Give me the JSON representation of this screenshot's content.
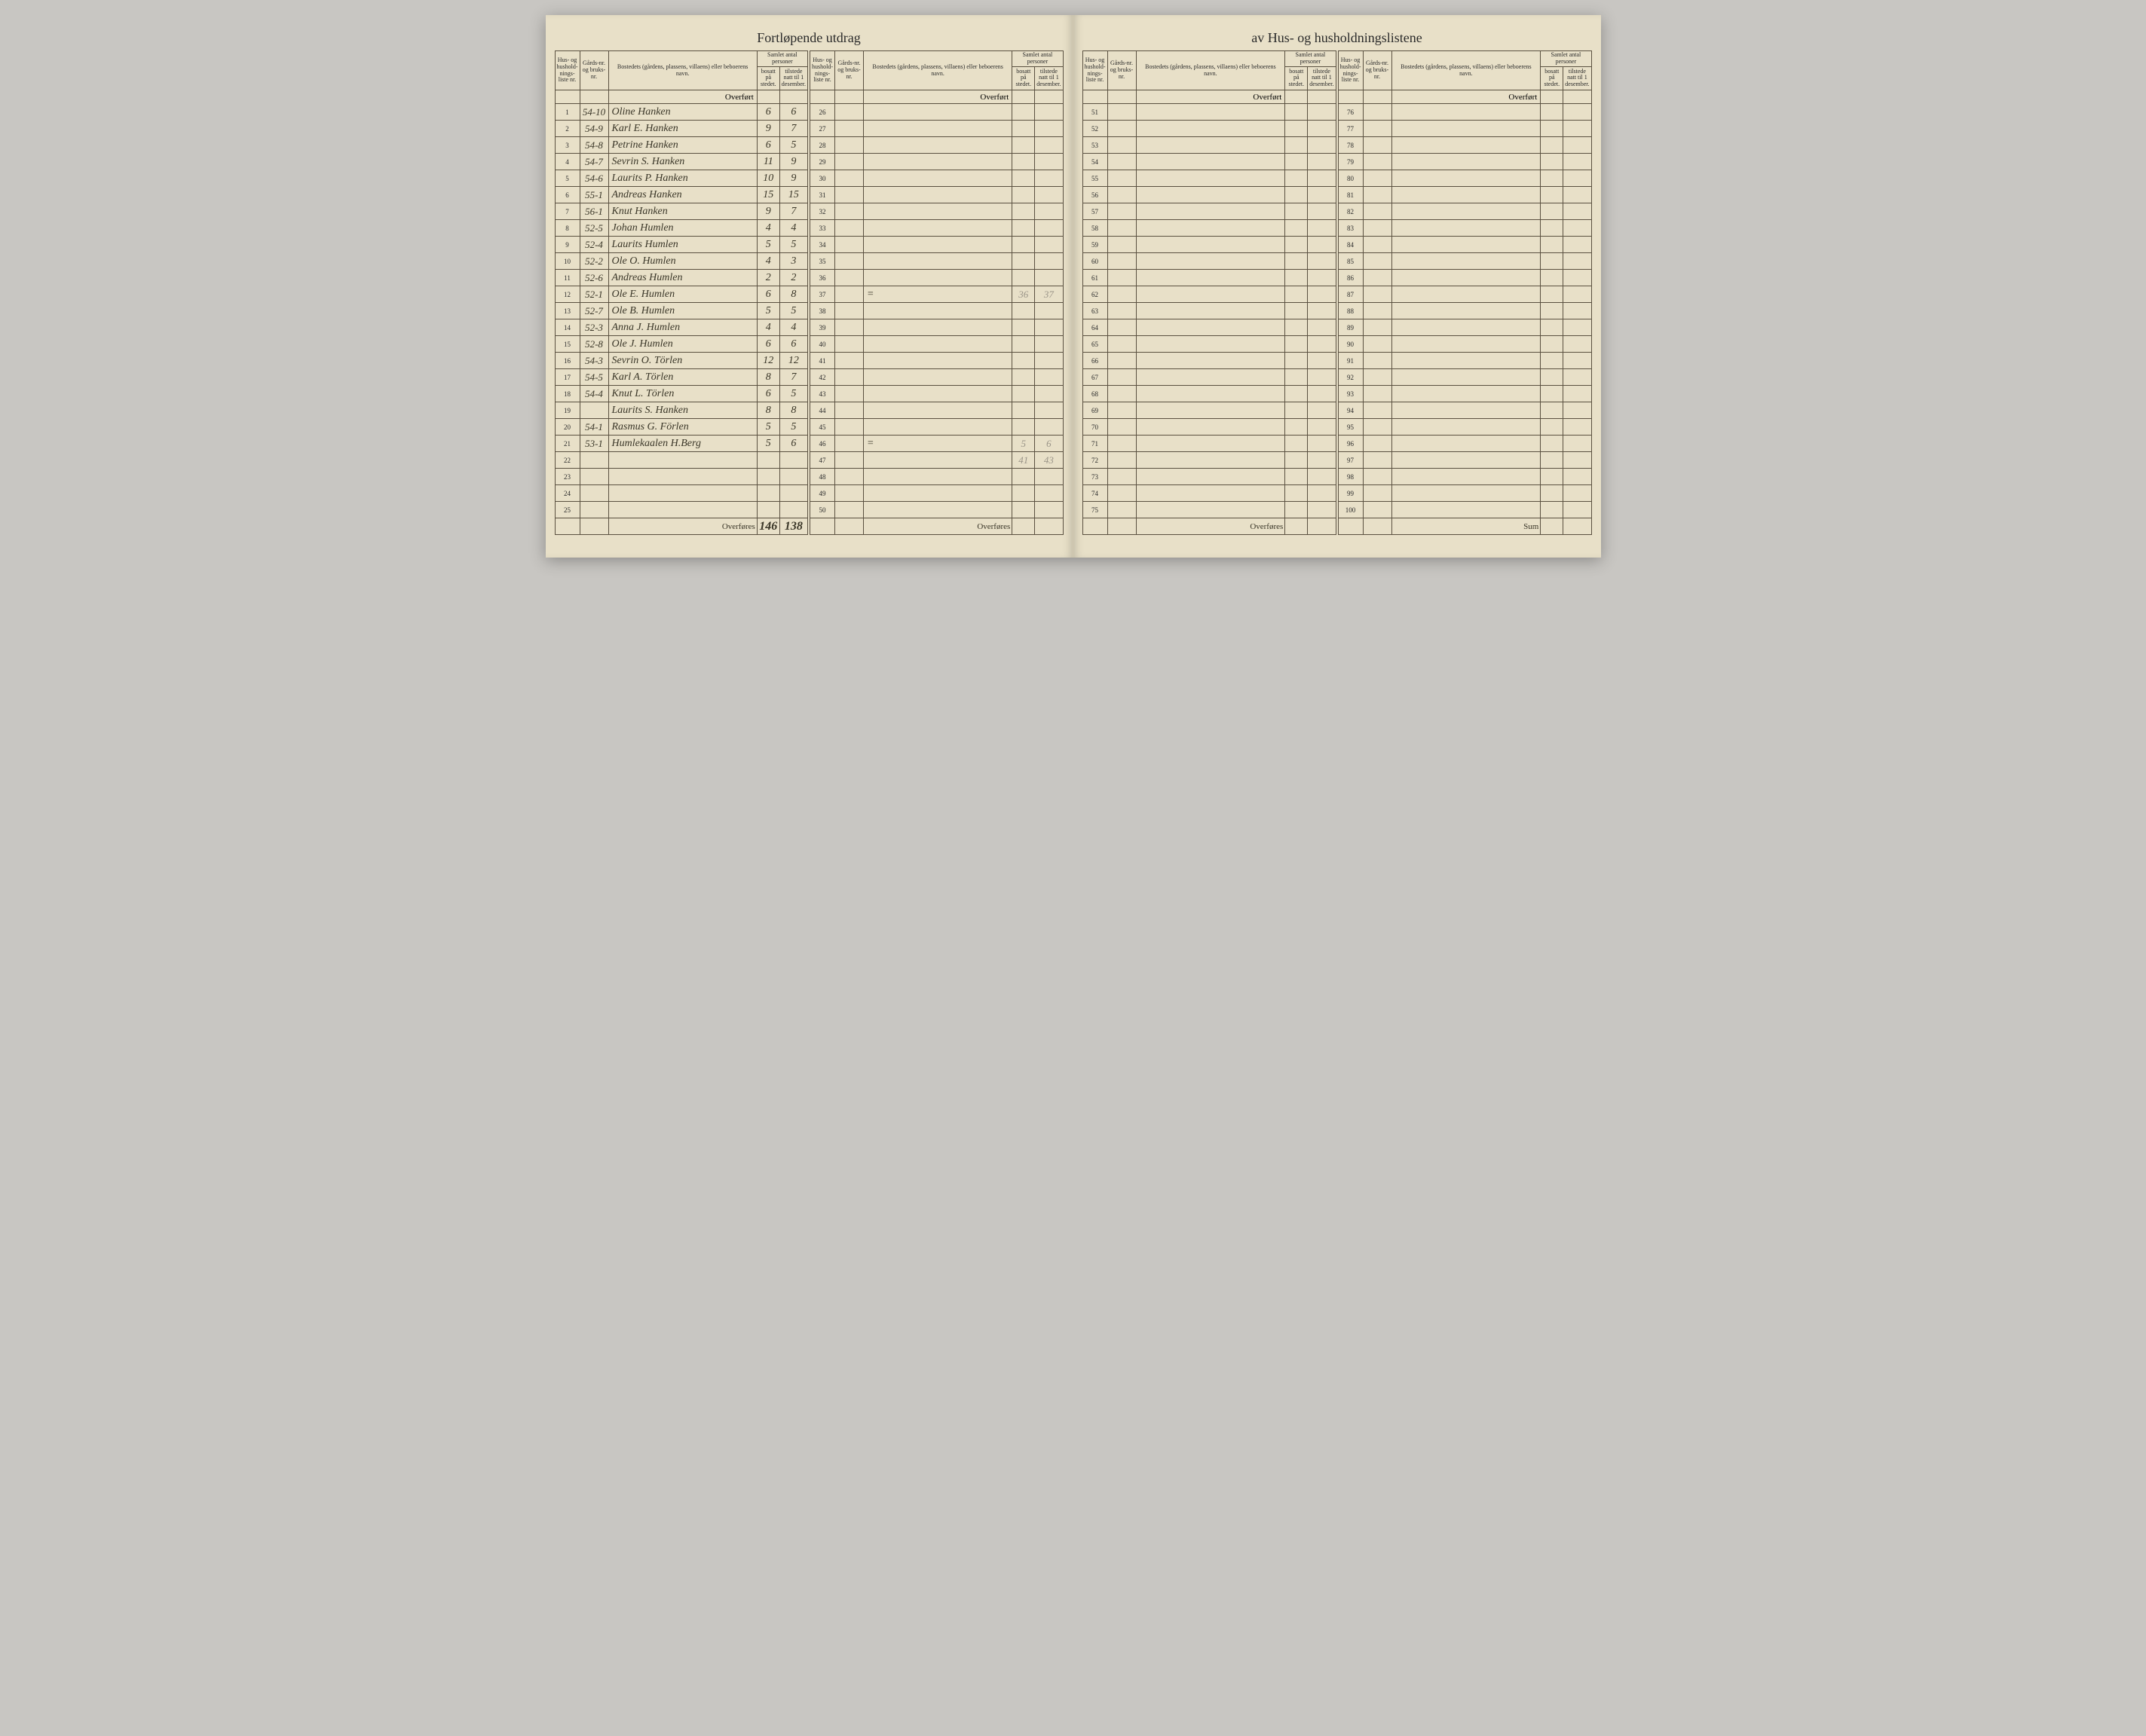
{
  "title_left": "Fortløpende utdrag",
  "title_right": "av Hus- og husholdningslistene",
  "headers": {
    "hus": "Hus- og hushold-nings-liste nr.",
    "gard": "Gårds-nr. og bruks-nr.",
    "bosted": "Bostedets (gårdens, plassens, villaens) eller beboerens navn.",
    "samlet": "Samlet antal personer",
    "bosatt": "bosatt på stedet.",
    "tilstede": "tilstede natt til 1 desember."
  },
  "labels": {
    "overfort": "Overført",
    "overfores": "Overføres",
    "sum": "Sum"
  },
  "left_rows": [
    {
      "n": "1",
      "g": "54-10",
      "name": "Oline Hanken",
      "b": "6",
      "t": "6"
    },
    {
      "n": "2",
      "g": "54-9",
      "name": "Karl E. Hanken",
      "b": "9",
      "t": "7"
    },
    {
      "n": "3",
      "g": "54-8",
      "name": "Petrine Hanken",
      "b": "6",
      "t": "5"
    },
    {
      "n": "4",
      "g": "54-7",
      "name": "Sevrin S. Hanken",
      "b": "11",
      "t": "9"
    },
    {
      "n": "5",
      "g": "54-6",
      "name": "Laurits P. Hanken",
      "b": "10",
      "t": "9"
    },
    {
      "n": "6",
      "g": "55-1",
      "name": "Andreas Hanken",
      "b": "15",
      "t": "15"
    },
    {
      "n": "7",
      "g": "56-1",
      "name": "Knut Hanken",
      "b": "9",
      "t": "7"
    },
    {
      "n": "8",
      "g": "52-5",
      "name": "Johan Humlen",
      "b": "4",
      "t": "4"
    },
    {
      "n": "9",
      "g": "52-4",
      "name": "Laurits Humlen",
      "b": "5",
      "t": "5"
    },
    {
      "n": "10",
      "g": "52-2",
      "name": "Ole O. Humlen",
      "b": "4",
      "t": "3"
    },
    {
      "n": "11",
      "g": "52-6",
      "name": "Andreas Humlen",
      "b": "2",
      "t": "2"
    },
    {
      "n": "12",
      "g": "52-1",
      "name": "Ole E. Humlen",
      "b": "6",
      "t": "8"
    },
    {
      "n": "13",
      "g": "52-7",
      "name": "Ole B. Humlen",
      "b": "5",
      "t": "5"
    },
    {
      "n": "14",
      "g": "52-3",
      "name": "Anna J. Humlen",
      "b": "4",
      "t": "4"
    },
    {
      "n": "15",
      "g": "52-8",
      "name": "Ole J. Humlen",
      "b": "6",
      "t": "6"
    },
    {
      "n": "16",
      "g": "54-3",
      "name": "Sevrin O. Törlen",
      "b": "12",
      "t": "12"
    },
    {
      "n": "17",
      "g": "54-5",
      "name": "Karl A. Törlen",
      "b": "8",
      "t": "7"
    },
    {
      "n": "18",
      "g": "54-4",
      "name": "Knut L. Törlen",
      "b": "6",
      "t": "5"
    },
    {
      "n": "19",
      "g": "",
      "name": "Laurits S. Hanken",
      "b": "8",
      "t": "8"
    },
    {
      "n": "20",
      "g": "54-1",
      "name": "Rasmus G. Förlen",
      "b": "5",
      "t": "5"
    },
    {
      "n": "21",
      "g": "53-1",
      "name": "Humlekaalen H.Berg",
      "b": "5",
      "t": "6"
    },
    {
      "n": "22",
      "g": "",
      "name": "",
      "b": "",
      "t": ""
    },
    {
      "n": "23",
      "g": "",
      "name": "",
      "b": "",
      "t": ""
    },
    {
      "n": "24",
      "g": "",
      "name": "",
      "b": "",
      "t": ""
    },
    {
      "n": "25",
      "g": "",
      "name": "",
      "b": "",
      "t": ""
    }
  ],
  "left2_rows": [
    {
      "n": "26"
    },
    {
      "n": "27"
    },
    {
      "n": "28"
    },
    {
      "n": "29"
    },
    {
      "n": "30"
    },
    {
      "n": "31"
    },
    {
      "n": "32"
    },
    {
      "n": "33"
    },
    {
      "n": "34"
    },
    {
      "n": "35"
    },
    {
      "n": "36"
    },
    {
      "n": "37",
      "b": "36",
      "t": "37",
      "mark": "="
    },
    {
      "n": "38"
    },
    {
      "n": "39"
    },
    {
      "n": "40"
    },
    {
      "n": "41"
    },
    {
      "n": "42"
    },
    {
      "n": "43"
    },
    {
      "n": "44"
    },
    {
      "n": "45"
    },
    {
      "n": "46",
      "b": "5",
      "t": "6",
      "mark": "="
    },
    {
      "n": "47",
      "b": "41",
      "t": "43"
    },
    {
      "n": "48"
    },
    {
      "n": "49"
    },
    {
      "n": "50"
    }
  ],
  "left_total": {
    "b": "146",
    "t": "138"
  },
  "right1_rows": [
    {
      "n": "51"
    },
    {
      "n": "52"
    },
    {
      "n": "53"
    },
    {
      "n": "54"
    },
    {
      "n": "55"
    },
    {
      "n": "56"
    },
    {
      "n": "57"
    },
    {
      "n": "58"
    },
    {
      "n": "59"
    },
    {
      "n": "60"
    },
    {
      "n": "61"
    },
    {
      "n": "62"
    },
    {
      "n": "63"
    },
    {
      "n": "64"
    },
    {
      "n": "65"
    },
    {
      "n": "66"
    },
    {
      "n": "67"
    },
    {
      "n": "68"
    },
    {
      "n": "69"
    },
    {
      "n": "70"
    },
    {
      "n": "71"
    },
    {
      "n": "72"
    },
    {
      "n": "73"
    },
    {
      "n": "74"
    },
    {
      "n": "75"
    }
  ],
  "right2_rows": [
    {
      "n": "76"
    },
    {
      "n": "77"
    },
    {
      "n": "78"
    },
    {
      "n": "79"
    },
    {
      "n": "80"
    },
    {
      "n": "81"
    },
    {
      "n": "82"
    },
    {
      "n": "83"
    },
    {
      "n": "84"
    },
    {
      "n": "85"
    },
    {
      "n": "86"
    },
    {
      "n": "87"
    },
    {
      "n": "88"
    },
    {
      "n": "89"
    },
    {
      "n": "90"
    },
    {
      "n": "91"
    },
    {
      "n": "92"
    },
    {
      "n": "93"
    },
    {
      "n": "94"
    },
    {
      "n": "95"
    },
    {
      "n": "96"
    },
    {
      "n": "97"
    },
    {
      "n": "98"
    },
    {
      "n": "99"
    },
    {
      "n": "100"
    }
  ]
}
